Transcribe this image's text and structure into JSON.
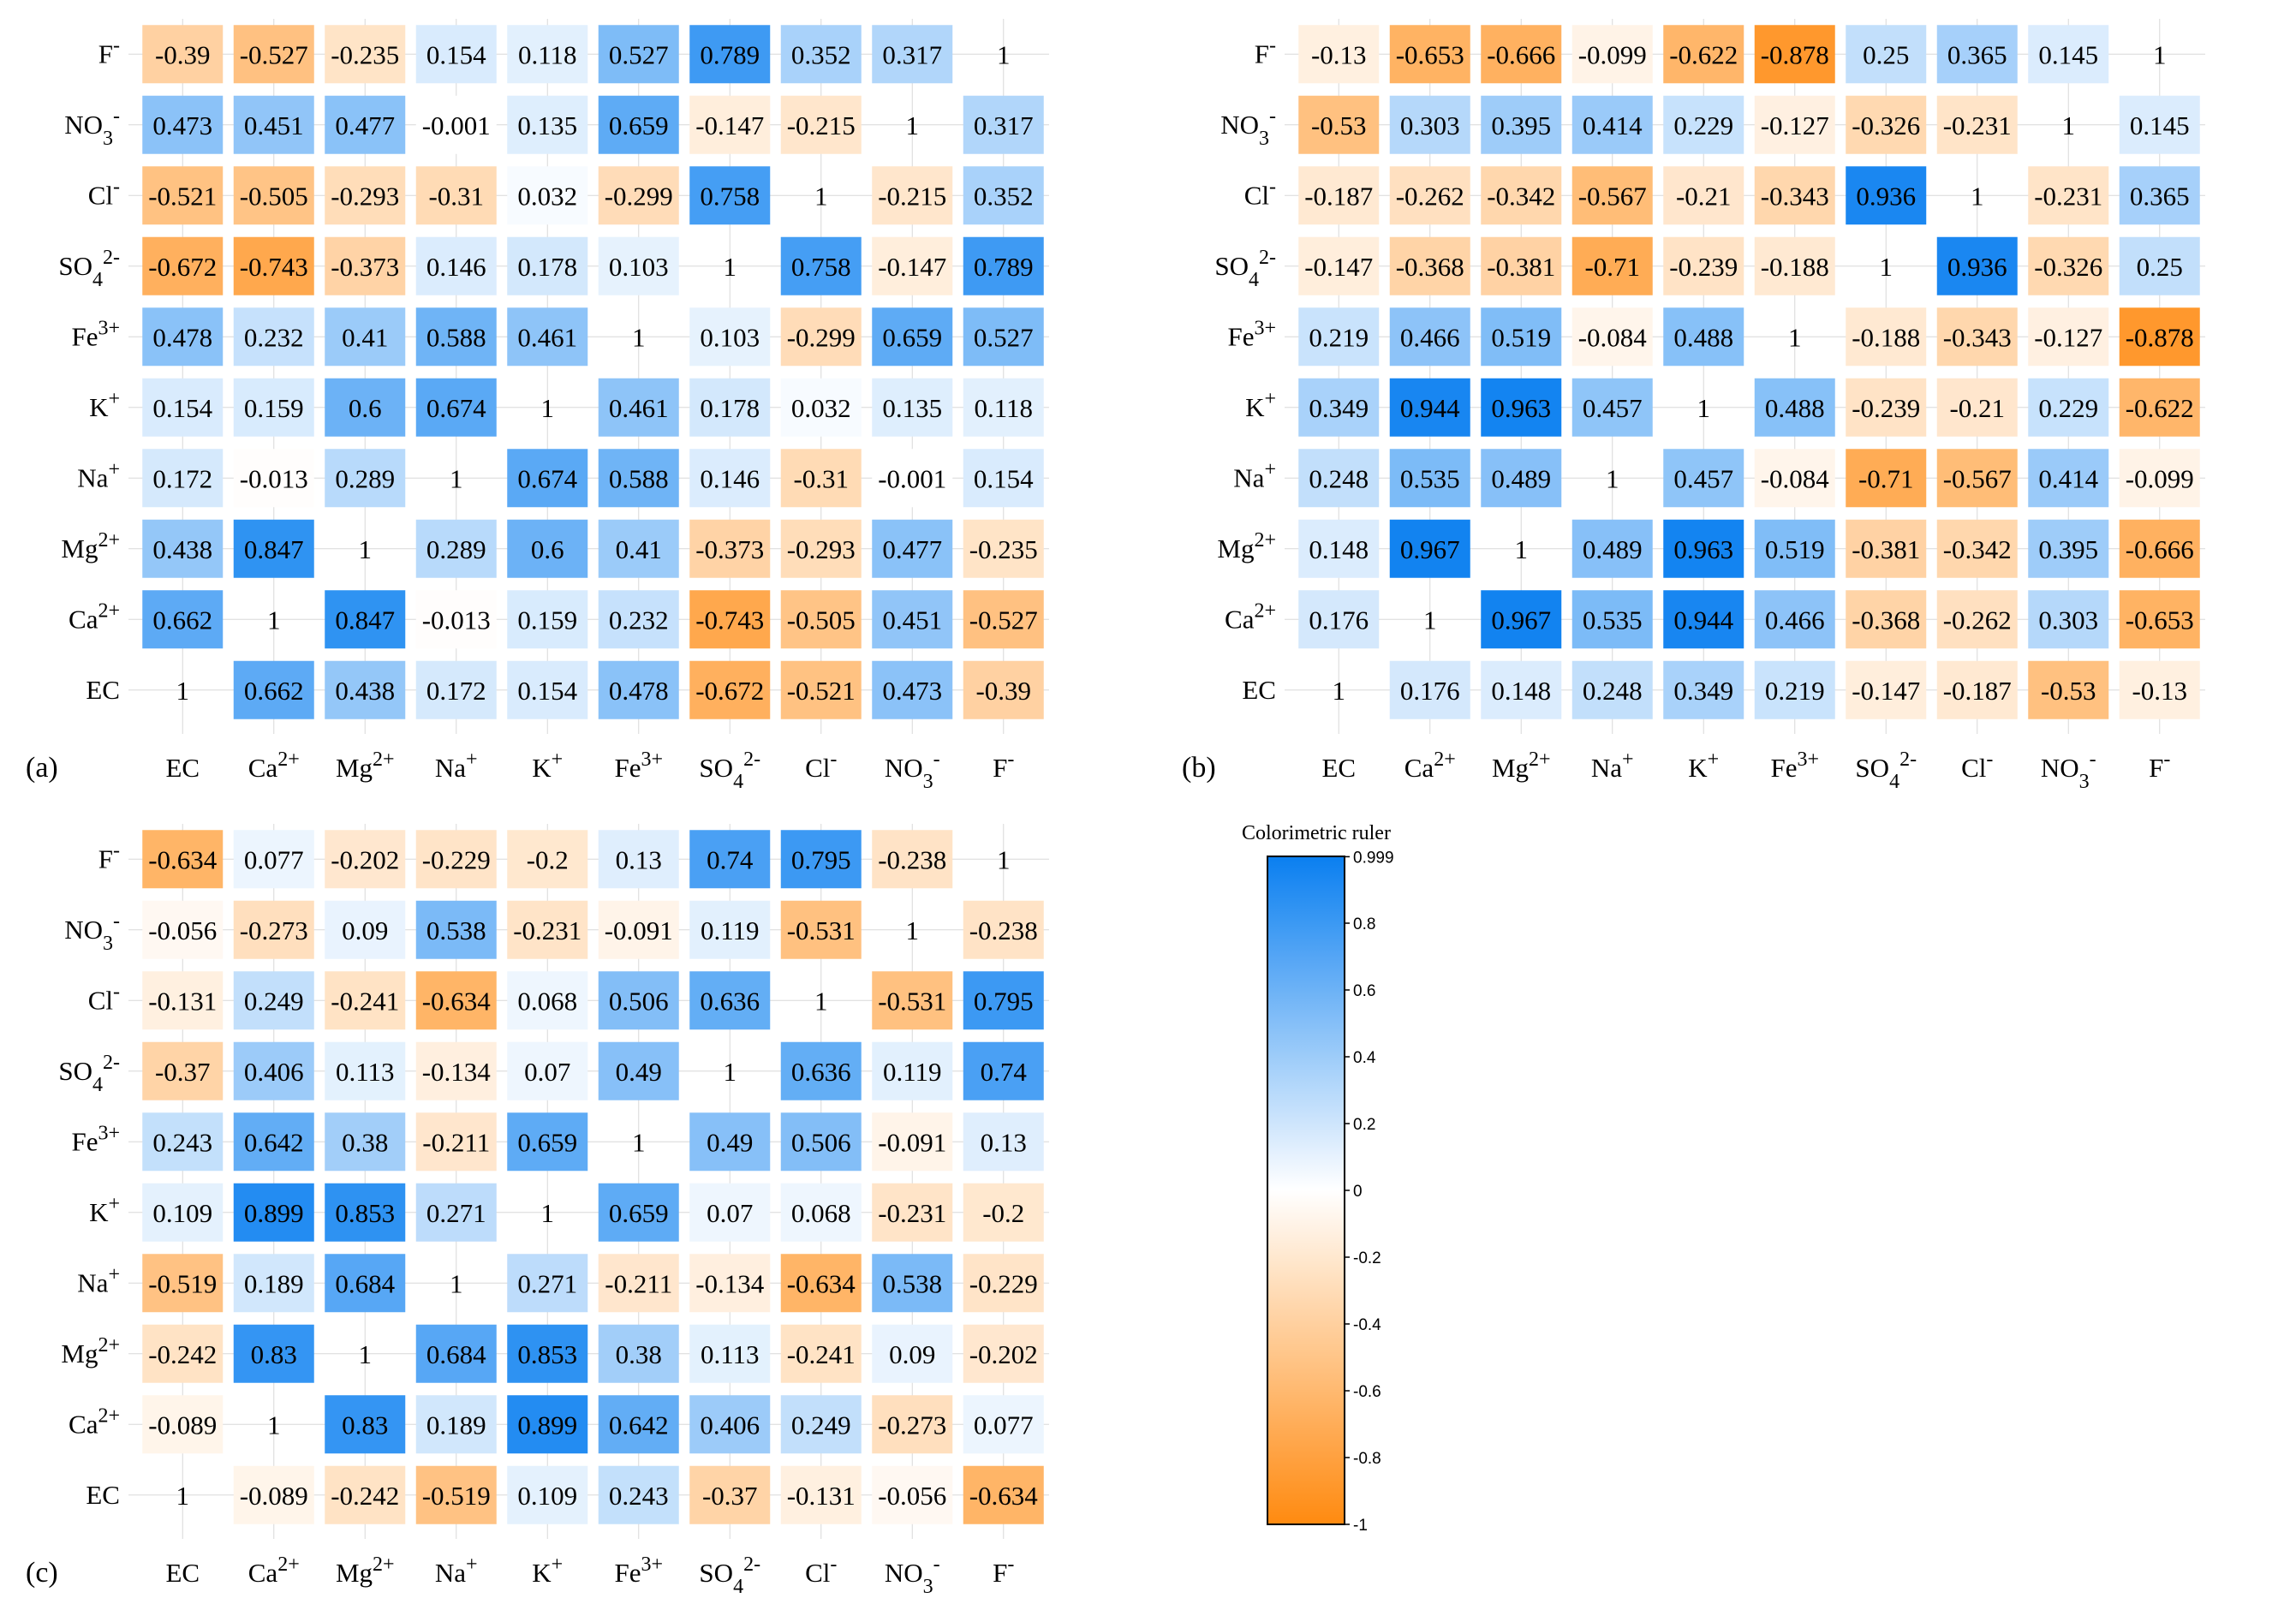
{
  "labels": [
    "EC",
    "Ca2+",
    "Mg2+",
    "Na+",
    "K+",
    "Fe3+",
    "SO42-",
    "Cl-",
    "NO3-",
    "F-"
  ],
  "label_parts": {
    "EC": {
      "base": "EC",
      "sub": "",
      "sup": ""
    },
    "Ca2+": {
      "base": "Ca",
      "sub": "",
      "sup": "2+"
    },
    "Mg2+": {
      "base": "Mg",
      "sub": "",
      "sup": "2+"
    },
    "Na+": {
      "base": "Na",
      "sub": "",
      "sup": "+"
    },
    "K+": {
      "base": "K",
      "sub": "",
      "sup": "+"
    },
    "Fe3+": {
      "base": "Fe",
      "sub": "",
      "sup": "3+"
    },
    "SO42-": {
      "base": "SO",
      "sub": "4",
      "sup": "2-"
    },
    "Cl-": {
      "base": "Cl",
      "sub": "",
      "sup": "-"
    },
    "NO3-": {
      "base": "NO",
      "sub": "3",
      "sup": "-"
    },
    "F-": {
      "base": "F",
      "sub": "",
      "sup": "-"
    }
  },
  "colors": {
    "positive": "#0a7ff0",
    "negative": "#ff8a10",
    "neutral": "#ffffff"
  },
  "chart_data": [
    {
      "type": "heatmap",
      "panel_label": "(a)",
      "x_labels": [
        "EC",
        "Ca2+",
        "Mg2+",
        "Na+",
        "K+",
        "Fe3+",
        "SO42-",
        "Cl-",
        "NO3-",
        "F-"
      ],
      "y_labels": [
        "EC",
        "Ca2+",
        "Mg2+",
        "Na+",
        "K+",
        "Fe3+",
        "SO42-",
        "Cl-",
        "NO3-",
        "F-"
      ],
      "matrix": [
        [
          1,
          0.662,
          0.438,
          0.172,
          0.154,
          0.478,
          -0.672,
          -0.521,
          0.473,
          -0.39
        ],
        [
          0.662,
          1,
          0.847,
          -0.013,
          0.159,
          0.232,
          -0.743,
          -0.505,
          0.451,
          -0.527
        ],
        [
          0.438,
          0.847,
          1,
          0.289,
          0.6,
          0.41,
          -0.373,
          -0.293,
          0.477,
          -0.235
        ],
        [
          0.172,
          -0.013,
          0.289,
          1,
          0.674,
          0.588,
          0.146,
          -0.31,
          -0.001,
          0.154
        ],
        [
          0.154,
          0.159,
          0.6,
          0.674,
          1,
          0.461,
          0.178,
          0.032,
          0.135,
          0.118
        ],
        [
          0.478,
          0.232,
          0.41,
          0.588,
          0.461,
          1,
          0.103,
          -0.299,
          0.659,
          0.527
        ],
        [
          -0.672,
          -0.743,
          -0.373,
          0.146,
          0.178,
          0.103,
          1,
          0.758,
          -0.147,
          0.789
        ],
        [
          -0.521,
          -0.505,
          -0.293,
          -0.31,
          0.032,
          -0.299,
          0.758,
          1,
          -0.215,
          0.352
        ],
        [
          0.473,
          0.451,
          0.477,
          -0.001,
          0.135,
          0.659,
          -0.147,
          -0.215,
          1,
          0.317
        ],
        [
          -0.39,
          -0.527,
          -0.235,
          0.154,
          0.118,
          0.527,
          0.789,
          0.352,
          0.317,
          1
        ]
      ]
    },
    {
      "type": "heatmap",
      "panel_label": "(b)",
      "x_labels": [
        "EC",
        "Ca2+",
        "Mg2+",
        "Na+",
        "K+",
        "Fe3+",
        "SO42-",
        "Cl-",
        "NO3-",
        "F-"
      ],
      "y_labels": [
        "EC",
        "Ca2+",
        "Mg2+",
        "Na+",
        "K+",
        "Fe3+",
        "SO42-",
        "Cl-",
        "NO3-",
        "F-"
      ],
      "matrix": [
        [
          1,
          0.176,
          0.148,
          0.248,
          0.349,
          0.219,
          -0.147,
          -0.187,
          -0.53,
          -0.13
        ],
        [
          0.176,
          1,
          0.967,
          0.535,
          0.944,
          0.466,
          -0.368,
          -0.262,
          0.303,
          -0.653
        ],
        [
          0.148,
          0.967,
          1,
          0.489,
          0.963,
          0.519,
          -0.381,
          -0.342,
          0.395,
          -0.666
        ],
        [
          0.248,
          0.535,
          0.489,
          1,
          0.457,
          -0.084,
          -0.71,
          -0.567,
          0.414,
          -0.099
        ],
        [
          0.349,
          0.944,
          0.963,
          0.457,
          1,
          0.488,
          -0.239,
          -0.21,
          0.229,
          -0.622
        ],
        [
          0.219,
          0.466,
          0.519,
          -0.084,
          0.488,
          1,
          -0.188,
          -0.343,
          -0.127,
          -0.878
        ],
        [
          -0.147,
          -0.368,
          -0.381,
          -0.71,
          -0.239,
          -0.188,
          1,
          0.936,
          -0.326,
          0.25
        ],
        [
          -0.187,
          -0.262,
          -0.342,
          -0.567,
          -0.21,
          -0.343,
          0.936,
          1,
          -0.231,
          0.365
        ],
        [
          -0.53,
          0.303,
          0.395,
          0.414,
          0.229,
          -0.127,
          -0.326,
          -0.231,
          1,
          0.145
        ],
        [
          -0.13,
          -0.653,
          -0.666,
          -0.099,
          -0.622,
          -0.878,
          0.25,
          0.365,
          0.145,
          1
        ]
      ]
    },
    {
      "type": "heatmap",
      "panel_label": "(c)",
      "x_labels": [
        "EC",
        "Ca2+",
        "Mg2+",
        "Na+",
        "K+",
        "Fe3+",
        "SO42-",
        "Cl-",
        "NO3-",
        "F-"
      ],
      "y_labels": [
        "EC",
        "Ca2+",
        "Mg2+",
        "Na+",
        "K+",
        "Fe3+",
        "SO42-",
        "Cl-",
        "NO3-",
        "F-"
      ],
      "matrix": [
        [
          1,
          -0.089,
          -0.242,
          -0.519,
          0.109,
          0.243,
          -0.37,
          -0.131,
          -0.056,
          -0.634
        ],
        [
          -0.089,
          1,
          0.83,
          0.189,
          0.899,
          0.642,
          0.406,
          0.249,
          -0.273,
          0.077
        ],
        [
          -0.242,
          0.83,
          1,
          0.684,
          0.853,
          0.38,
          0.113,
          -0.241,
          0.09,
          -0.202
        ],
        [
          -0.519,
          0.189,
          0.684,
          1,
          0.271,
          -0.211,
          -0.134,
          -0.634,
          0.538,
          -0.229
        ],
        [
          0.109,
          0.899,
          0.853,
          0.271,
          1,
          0.659,
          0.07,
          0.068,
          -0.231,
          -0.2
        ],
        [
          0.243,
          0.642,
          0.38,
          -0.211,
          0.659,
          1,
          0.49,
          0.506,
          -0.091,
          0.13
        ],
        [
          -0.37,
          0.406,
          0.113,
          -0.134,
          0.07,
          0.49,
          1,
          0.636,
          0.119,
          0.74
        ],
        [
          -0.131,
          0.249,
          -0.241,
          -0.634,
          0.068,
          0.506,
          0.636,
          1,
          -0.531,
          0.795
        ],
        [
          -0.056,
          -0.273,
          0.09,
          0.538,
          -0.231,
          -0.091,
          0.119,
          -0.531,
          1,
          -0.238
        ],
        [
          -0.634,
          0.077,
          -0.202,
          -0.229,
          -0.2,
          0.13,
          0.74,
          0.795,
          -0.238,
          1
        ]
      ]
    }
  ],
  "legend": {
    "title": "Colorimetric ruler",
    "ticks": [
      "0.999",
      "0.8",
      "0.6",
      "0.4",
      "0.2",
      "0",
      "-0.2",
      "-0.4",
      "-0.6",
      "-0.8",
      "-1"
    ],
    "tick_values": [
      0.999,
      0.8,
      0.6,
      0.4,
      0.2,
      0,
      -0.2,
      -0.4,
      -0.6,
      -0.8,
      -1
    ],
    "min": -1,
    "max": 1
  }
}
